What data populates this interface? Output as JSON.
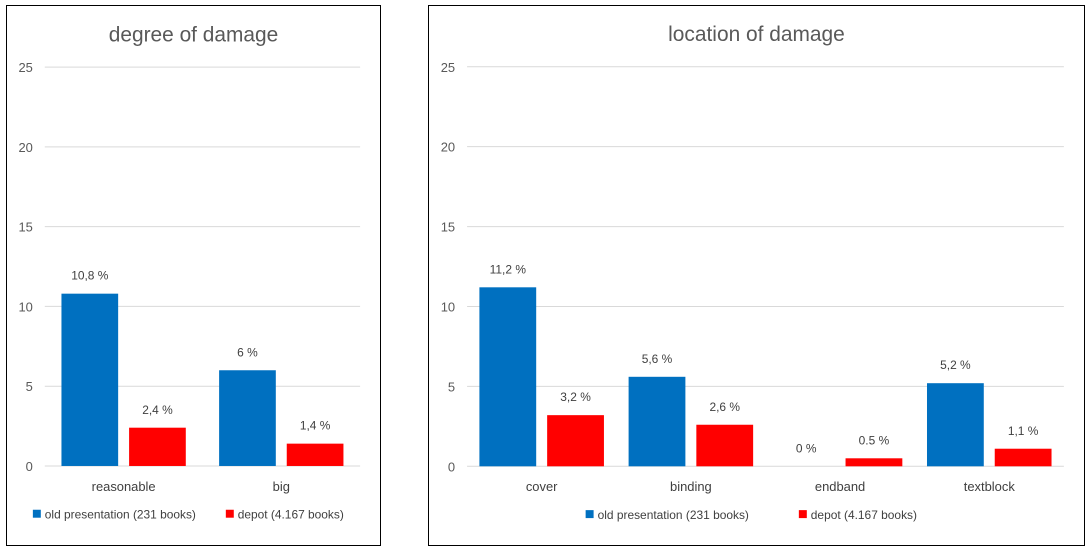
{
  "colors": {
    "old": "#0070c0",
    "depot": "#ff0000"
  },
  "chart_data": [
    {
      "type": "bar",
      "title": "degree of damage",
      "categories": [
        "reasonable",
        "big"
      ],
      "series": [
        {
          "name": "old presentation (231 books)",
          "values": [
            10.8,
            6.0
          ],
          "labels": [
            "10,8 %",
            "6 %"
          ]
        },
        {
          "name": "depot (4.167 books)",
          "values": [
            2.4,
            1.4
          ],
          "labels": [
            "2,4 %",
            "1,4 %"
          ]
        }
      ],
      "ylim": [
        0,
        25
      ],
      "yticks": [
        0,
        5,
        10,
        15,
        20,
        25
      ],
      "grid": true,
      "legend": "bottom"
    },
    {
      "type": "bar",
      "title": "location of damage",
      "categories": [
        "cover",
        "binding",
        "endband",
        "textblock"
      ],
      "series": [
        {
          "name": "old presentation (231 books)",
          "values": [
            11.2,
            5.6,
            0,
            5.2
          ],
          "labels": [
            "11,2 %",
            "5,6 %",
            "0 %",
            "5,2 %"
          ]
        },
        {
          "name": "depot (4.167 books)",
          "values": [
            3.2,
            2.6,
            0.5,
            1.1
          ],
          "labels": [
            "3,2 %",
            "2,6 %",
            "0.5 %",
            "1,1 %"
          ]
        }
      ],
      "ylim": [
        0,
        25
      ],
      "yticks": [
        0,
        5,
        10,
        15,
        20,
        25
      ],
      "grid": true,
      "legend": "bottom"
    }
  ]
}
